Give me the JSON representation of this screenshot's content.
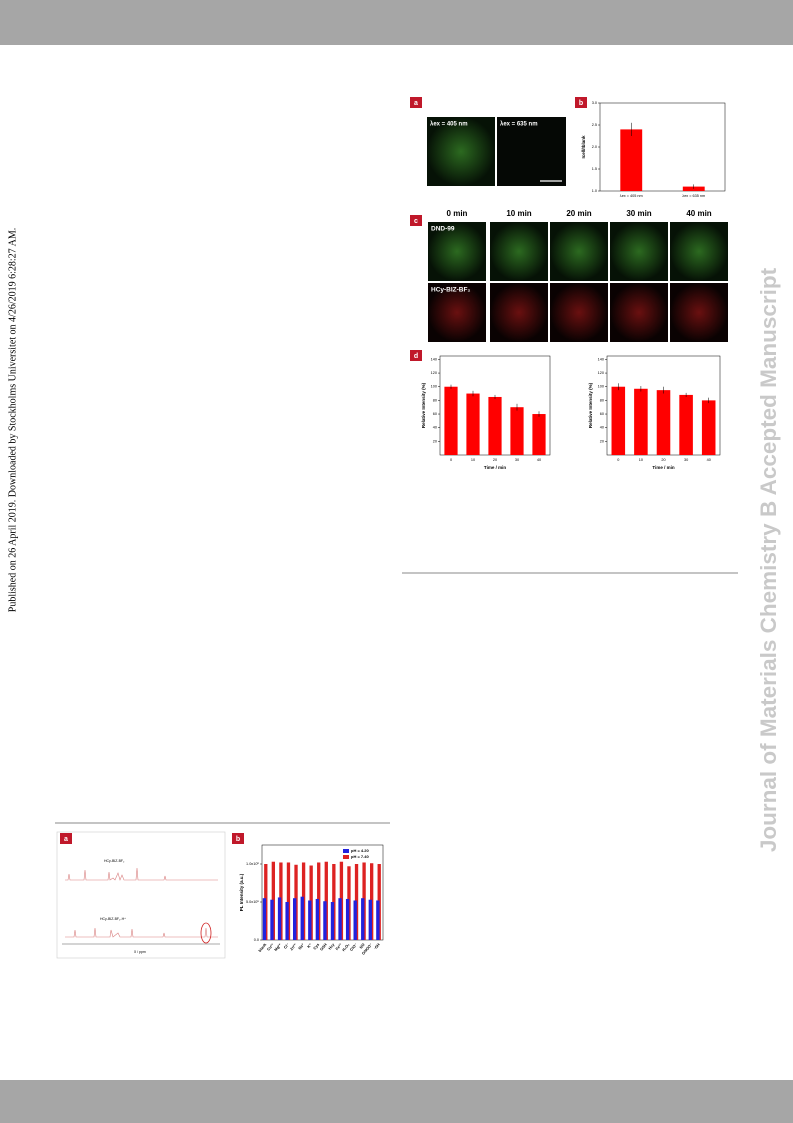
{
  "sidebar": {
    "publication_note": "Published on 26 April 2019. Downloaded by Stockholms Universitet on 4/26/2019 6:28:27 AM."
  },
  "watermark": {
    "text": "Journal of Materials Chemistry B Accepted Manuscript"
  },
  "figure_top": {
    "panel_a": {
      "label": "a",
      "images": [
        "λex = 405 nm",
        "λex = 635 nm"
      ]
    },
    "panel_b": {
      "label": "b"
    },
    "panel_c": {
      "label": "c",
      "columns": [
        "0 min",
        "10 min",
        "20 min",
        "30 min",
        "40 min"
      ],
      "rows": [
        "DND-99",
        "HCy-BIZ-BF₂"
      ]
    },
    "panel_d": {
      "label": "d"
    }
  },
  "figure_bottom": {
    "panel_a": {
      "label": "a",
      "compounds": [
        "HCy-BIZ-BF₂",
        "HCy-BIZ-BF₂-H⁺"
      ],
      "xlabel": "δ / ppm"
    },
    "panel_b": {
      "label": "b"
    }
  },
  "chart_data": [
    {
      "type": "bar",
      "categories": [
        "λex = 405 nm",
        "λex = 635 nm"
      ],
      "values": [
        2.4,
        1.1
      ],
      "errors": [
        0.15,
        0.05
      ],
      "color": "#ff0000",
      "ylabel": "Icell/Iblank",
      "ylim": [
        1.0,
        3.0
      ],
      "yticks": [
        {
          "value": 1,
          "label": "1.0"
        },
        {
          "value": 1.5,
          "label": "1.5"
        },
        {
          "value": 2,
          "label": "2.0"
        },
        {
          "value": 2.5,
          "label": "2.5"
        },
        {
          "value": 3,
          "label": "3.0"
        }
      ]
    },
    {
      "type": "bar",
      "categories": [
        "0",
        "10",
        "20",
        "30",
        "40"
      ],
      "values": [
        100,
        90,
        85,
        70,
        60
      ],
      "errors": [
        3,
        4,
        3,
        5,
        4
      ],
      "color": "#ff0000",
      "ylabel": "Relative Intensity (%)",
      "xlabel": "Time / min",
      "ylim": [
        0,
        145
      ],
      "yticks": [
        20,
        40,
        60,
        80,
        100,
        120,
        140
      ]
    },
    {
      "type": "bar",
      "categories": [
        "0",
        "10",
        "20",
        "30",
        "40"
      ],
      "values": [
        100,
        97,
        95,
        88,
        80
      ],
      "errors": [
        5,
        4,
        5,
        3,
        4
      ],
      "color": "#ff0000",
      "ylabel": "Relative Intensity (%)",
      "xlabel": "Time / min",
      "ylim": [
        0,
        145
      ],
      "yticks": [
        20,
        40,
        60,
        80,
        100,
        120,
        140
      ]
    },
    {
      "type": "grouped-bar",
      "categories": [
        "blank",
        "Cu²⁺",
        "Mg²⁺",
        "Cl⁻",
        "Zn²⁺",
        "Na⁺",
        "K⁺",
        "Cys",
        "GSH",
        "Hcy",
        "Fe³⁺",
        "H₂O₂",
        "ClO⁻",
        "NO",
        "ONOO⁻",
        "·OH"
      ],
      "series": [
        {
          "name": "pH = 4.20",
          "color": "#2222dd",
          "values": [
            0.55,
            0.53,
            0.56,
            0.5,
            0.55,
            0.57,
            0.52,
            0.54,
            0.51,
            0.5,
            0.55,
            0.54,
            0.52,
            0.55,
            0.53,
            0.52
          ]
        },
        {
          "name": "pH = 7.40",
          "color": "#dd2222",
          "values": [
            1.0,
            1.03,
            1.02,
            1.02,
            0.99,
            1.02,
            0.98,
            1.02,
            1.03,
            1.0,
            1.03,
            0.97,
            1.0,
            1.02,
            1.01,
            1.0
          ]
        }
      ],
      "ylabel": "PL Intensity (a.u.)",
      "ylim": [
        0,
        1.25
      ],
      "legend": "upper right",
      "yticks": [
        {
          "value": 0,
          "label": "0.0"
        },
        {
          "value": 0.5,
          "label": "5.0x10⁵"
        },
        {
          "value": 1.0,
          "label": "1.0x10⁶"
        }
      ]
    }
  ]
}
